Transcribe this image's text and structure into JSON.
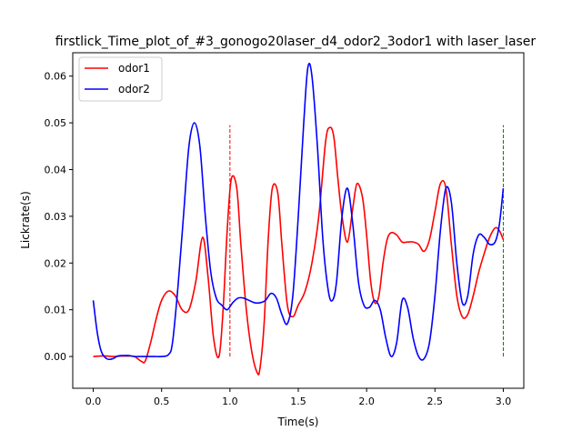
{
  "chart_data": {
    "type": "line",
    "title": "firstlick_Time_plot_of_#3_gonogo20laser_d4_odor2_3odor1 with laser_laser",
    "xlabel": "Time(s)",
    "ylabel": "Lickrate(s)",
    "xlim": [
      -0.15,
      3.15
    ],
    "ylim": [
      -0.0068,
      0.065
    ],
    "x_ticks": [
      "0.0",
      "0.5",
      "1.0",
      "1.5",
      "2.0",
      "2.5",
      "3.0"
    ],
    "y_ticks": [
      "0.00",
      "0.01",
      "0.02",
      "0.03",
      "0.04",
      "0.05",
      "0.06"
    ],
    "legend_position": "top-left",
    "grid": false,
    "series": [
      {
        "name": "odor1",
        "color": "#ff0000",
        "x": [
          0.0,
          0.05,
          0.1,
          0.15,
          0.2,
          0.25,
          0.3,
          0.35,
          0.38,
          0.42,
          0.46,
          0.5,
          0.55,
          0.6,
          0.65,
          0.7,
          0.75,
          0.8,
          0.84,
          0.88,
          0.92,
          0.95,
          0.98,
          1.01,
          1.05,
          1.08,
          1.12,
          1.16,
          1.2,
          1.22,
          1.25,
          1.28,
          1.31,
          1.35,
          1.38,
          1.42,
          1.46,
          1.5,
          1.55,
          1.6,
          1.65,
          1.7,
          1.73,
          1.76,
          1.79,
          1.82,
          1.86,
          1.9,
          1.93,
          1.97,
          2.0,
          2.03,
          2.06,
          2.09,
          2.12,
          2.15,
          2.18,
          2.22,
          2.26,
          2.3,
          2.34,
          2.38,
          2.42,
          2.46,
          2.5,
          2.54,
          2.58,
          2.62,
          2.66,
          2.7,
          2.74,
          2.78,
          2.82,
          2.86,
          2.9,
          2.94,
          2.97,
          3.0
        ],
        "y": [
          0.0,
          0.0001,
          0.0001,
          0.0,
          0.0001,
          0.0001,
          0.0,
          -0.001,
          -0.001,
          0.003,
          0.008,
          0.012,
          0.014,
          0.013,
          0.01,
          0.01,
          0.016,
          0.0255,
          0.017,
          0.004,
          0.0,
          0.01,
          0.027,
          0.038,
          0.036,
          0.024,
          0.01,
          0.001,
          -0.0035,
          -0.0025,
          0.007,
          0.025,
          0.036,
          0.035,
          0.024,
          0.011,
          0.0085,
          0.011,
          0.014,
          0.02,
          0.03,
          0.046,
          0.049,
          0.047,
          0.038,
          0.03,
          0.0245,
          0.032,
          0.037,
          0.034,
          0.026,
          0.016,
          0.0115,
          0.013,
          0.02,
          0.025,
          0.0265,
          0.026,
          0.0245,
          0.0245,
          0.0245,
          0.024,
          0.0225,
          0.025,
          0.031,
          0.037,
          0.036,
          0.024,
          0.013,
          0.0085,
          0.009,
          0.013,
          0.018,
          0.022,
          0.0255,
          0.0275,
          0.027,
          0.025
        ]
      },
      {
        "name": "odor2",
        "color": "#0000ff",
        "x": [
          0.0,
          0.03,
          0.06,
          0.1,
          0.14,
          0.18,
          0.22,
          0.26,
          0.3,
          0.35,
          0.4,
          0.45,
          0.5,
          0.55,
          0.58,
          0.62,
          0.66,
          0.7,
          0.74,
          0.78,
          0.82,
          0.86,
          0.9,
          0.94,
          0.98,
          1.02,
          1.06,
          1.1,
          1.14,
          1.18,
          1.22,
          1.26,
          1.3,
          1.34,
          1.38,
          1.42,
          1.46,
          1.5,
          1.54,
          1.57,
          1.6,
          1.64,
          1.68,
          1.72,
          1.75,
          1.78,
          1.82,
          1.86,
          1.9,
          1.94,
          1.98,
          2.02,
          2.06,
          2.1,
          2.14,
          2.18,
          2.22,
          2.26,
          2.3,
          2.34,
          2.38,
          2.42,
          2.46,
          2.5,
          2.54,
          2.58,
          2.62,
          2.66,
          2.7,
          2.74,
          2.78,
          2.82,
          2.86,
          2.9,
          2.94,
          2.97,
          3.0
        ],
        "y": [
          0.012,
          0.005,
          0.001,
          -0.0005,
          -0.0005,
          0.0001,
          0.0002,
          0.0002,
          0.0,
          0.0,
          0.0,
          0.0,
          0.0,
          0.0004,
          0.003,
          0.015,
          0.03,
          0.045,
          0.05,
          0.045,
          0.03,
          0.018,
          0.0125,
          0.011,
          0.01,
          0.0115,
          0.0125,
          0.0125,
          0.012,
          0.0115,
          0.0115,
          0.012,
          0.0135,
          0.0125,
          0.009,
          0.007,
          0.013,
          0.03,
          0.05,
          0.0618,
          0.06,
          0.045,
          0.025,
          0.014,
          0.012,
          0.016,
          0.03,
          0.036,
          0.028,
          0.016,
          0.011,
          0.0105,
          0.012,
          0.01,
          0.004,
          0.0,
          0.003,
          0.012,
          0.0105,
          0.004,
          0.0,
          -0.0005,
          0.003,
          0.013,
          0.027,
          0.036,
          0.033,
          0.02,
          0.0115,
          0.013,
          0.022,
          0.026,
          0.0255,
          0.024,
          0.0245,
          0.028,
          0.036
        ]
      }
    ],
    "markers": [
      {
        "x": 1.0,
        "y0": 0.0,
        "y1": 0.0495,
        "color": "#ff0000",
        "style": "dashed"
      },
      {
        "x": 3.0,
        "y0": 0.0,
        "y1": 0.0495,
        "color": "#008000",
        "style": "dashed"
      }
    ]
  }
}
